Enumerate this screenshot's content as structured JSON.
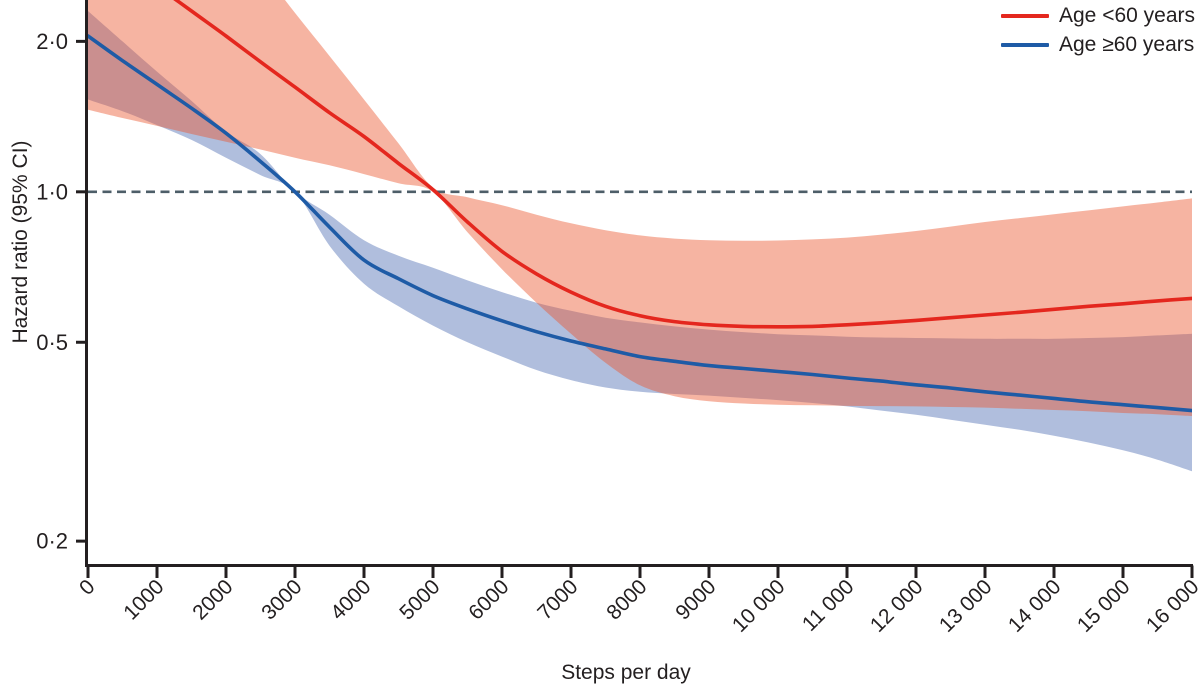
{
  "figure": {
    "x_axis_title": "Steps per day",
    "y_axis_title": "Hazard ratio (95% CI)",
    "legend": {
      "items": [
        {
          "label": "Age <60 years",
          "color": "#e4271e"
        },
        {
          "label": "Age ≥60 years",
          "color": "#1e5ba6"
        }
      ]
    }
  },
  "chart_data": {
    "type": "line",
    "title": "",
    "xlabel": "Steps per day",
    "ylabel": "Hazard ratio (95% CI)",
    "y_scale": "log",
    "grid": false,
    "legend_position": "top-right",
    "xlim": [
      0,
      16000
    ],
    "ylim": [
      0.18,
      2.42
    ],
    "reference_line": 1.0,
    "reference_line_color": "#4d5e68",
    "axis_color": "#231f20",
    "x_ticks": [
      0,
      1000,
      2000,
      3000,
      4000,
      5000,
      6000,
      7000,
      8000,
      9000,
      10000,
      11000,
      12000,
      13000,
      14000,
      15000,
      16000
    ],
    "x_tick_labels": [
      "0",
      "1000",
      "2000",
      "3000",
      "4000",
      "5000",
      "6000",
      "7000",
      "8000",
      "9000",
      "10 000",
      "11 000",
      "12 000",
      "13 000",
      "14 000",
      "15 000",
      "16 000"
    ],
    "y_ticks": [
      2.0,
      1.0,
      0.5,
      0.2
    ],
    "y_tick_labels": [
      "2·0",
      "1·0",
      "0·5",
      "0·2"
    ],
    "x": [
      0,
      500,
      1000,
      1500,
      2000,
      2500,
      3000,
      3500,
      4000,
      4500,
      5000,
      5500,
      6000,
      6500,
      7000,
      7500,
      8000,
      8500,
      9000,
      9500,
      10000,
      10500,
      11000,
      11500,
      12000,
      12500,
      13000,
      13500,
      14000,
      14500,
      15000,
      15500,
      16000
    ],
    "series": [
      {
        "name": "Age <60 years",
        "line_color": "#e4271e",
        "band_color": "#eb542c",
        "band_opacity": 0.44,
        "reference_steps": 5000,
        "hr": [
          3.26,
          2.9,
          2.58,
          2.3,
          2.05,
          1.82,
          1.62,
          1.44,
          1.29,
          1.14,
          1.01,
          0.87,
          0.76,
          0.685,
          0.63,
          0.59,
          0.565,
          0.55,
          0.542,
          0.538,
          0.537,
          0.538,
          0.542,
          0.547,
          0.553,
          0.56,
          0.567,
          0.574,
          0.582,
          0.59,
          0.597,
          0.605,
          0.612
        ],
        "ci_lower": [
          1.46,
          1.405,
          1.355,
          1.305,
          1.26,
          1.215,
          1.17,
          1.13,
          1.085,
          1.04,
          1.0,
          0.83,
          0.7,
          0.6,
          0.52,
          0.455,
          0.41,
          0.39,
          0.381,
          0.377,
          0.375,
          0.374,
          0.373,
          0.3725,
          0.372,
          0.371,
          0.37,
          0.368,
          0.366,
          0.364,
          0.361,
          0.359,
          0.356
        ],
        "ci_upper": [
          7.5,
          6.2,
          5.1,
          4.2,
          3.4,
          2.8,
          2.28,
          1.87,
          1.53,
          1.25,
          1.02,
          0.975,
          0.94,
          0.9,
          0.865,
          0.838,
          0.818,
          0.806,
          0.8,
          0.798,
          0.799,
          0.803,
          0.81,
          0.821,
          0.835,
          0.852,
          0.87,
          0.886,
          0.902,
          0.918,
          0.935,
          0.952,
          0.97
        ]
      },
      {
        "name": "Age ≥60 years",
        "line_color": "#1e5ba6",
        "band_color": "#b0bedd",
        "band_opacity": 1.0,
        "reference_steps": 3000,
        "hr": [
          2.05,
          1.83,
          1.64,
          1.47,
          1.31,
          1.15,
          1.0,
          0.85,
          0.73,
          0.67,
          0.62,
          0.583,
          0.552,
          0.525,
          0.503,
          0.485,
          0.468,
          0.458,
          0.449,
          0.443,
          0.437,
          0.431,
          0.424,
          0.418,
          0.411,
          0.405,
          0.398,
          0.392,
          0.386,
          0.38,
          0.375,
          0.37,
          0.365
        ],
        "ci_lower": [
          1.53,
          1.45,
          1.36,
          1.27,
          1.17,
          1.08,
          1.0,
          0.78,
          0.655,
          0.59,
          0.54,
          0.5,
          0.468,
          0.44,
          0.42,
          0.406,
          0.398,
          0.394,
          0.391,
          0.387,
          0.383,
          0.378,
          0.372,
          0.365,
          0.358,
          0.35,
          0.342,
          0.334,
          0.325,
          0.315,
          0.304,
          0.291,
          0.276
        ],
        "ci_upper": [
          2.3,
          2.0,
          1.74,
          1.52,
          1.32,
          1.19,
          1.0,
          0.9,
          0.8,
          0.745,
          0.705,
          0.665,
          0.63,
          0.6,
          0.578,
          0.56,
          0.548,
          0.538,
          0.53,
          0.524,
          0.519,
          0.516,
          0.513,
          0.511,
          0.51,
          0.509,
          0.508,
          0.508,
          0.508,
          0.51,
          0.512,
          0.516,
          0.52
        ]
      }
    ]
  }
}
